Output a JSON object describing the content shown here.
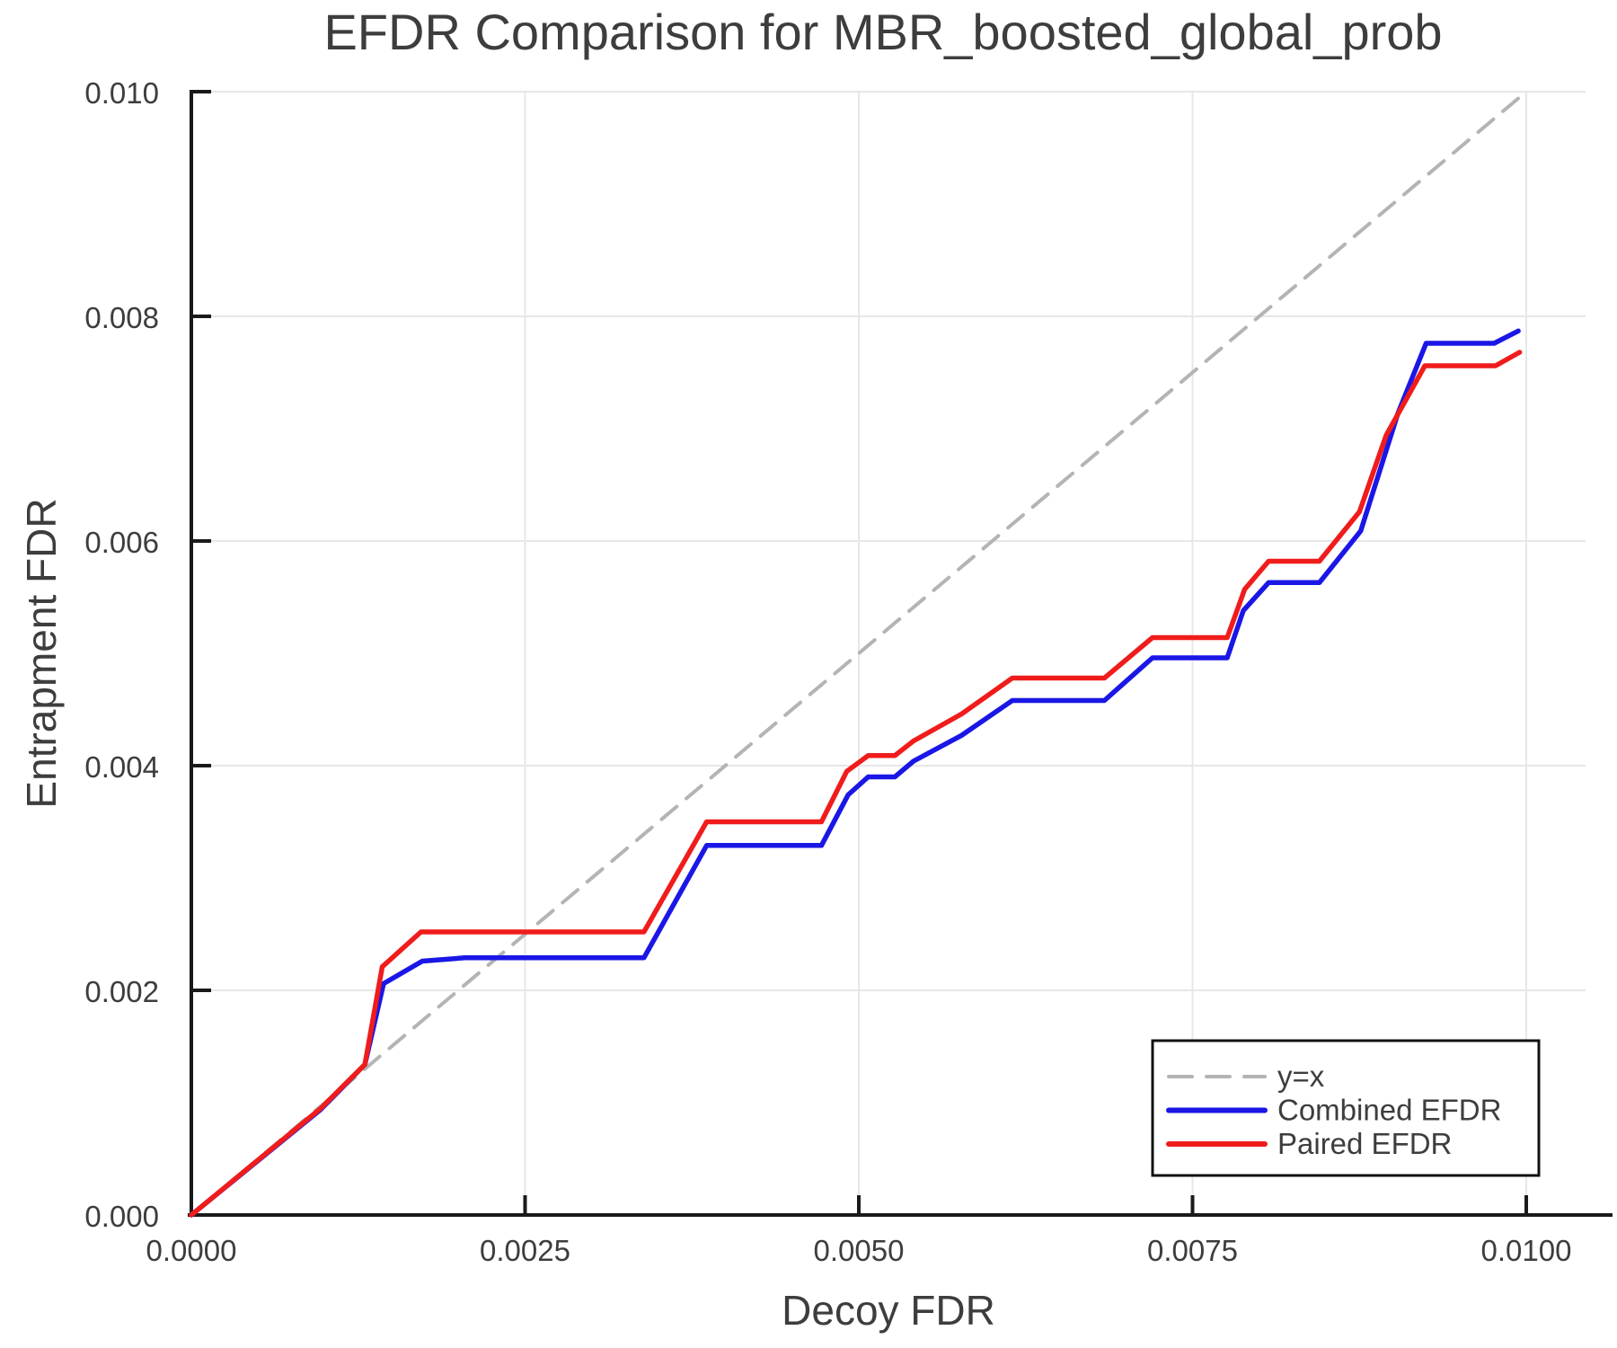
{
  "chart_data": {
    "type": "line",
    "title": "EFDR Comparison for MBR_boosted_global_prob",
    "xlabel": "Decoy FDR",
    "ylabel": "Entrapment FDR",
    "xlim": [
      0.0,
      0.010444
    ],
    "ylim": [
      0.0,
      0.01
    ],
    "grid": true,
    "legend_position": "lower right",
    "x_ticks": [
      {
        "value": 0.0,
        "label": "0.0000"
      },
      {
        "value": 0.0025,
        "label": "0.0025"
      },
      {
        "value": 0.005,
        "label": "0.0050"
      },
      {
        "value": 0.0075,
        "label": "0.0075"
      },
      {
        "value": 0.01,
        "label": "0.0100"
      }
    ],
    "y_ticks": [
      {
        "value": 0.0,
        "label": "0.000"
      },
      {
        "value": 0.002,
        "label": "0.002"
      },
      {
        "value": 0.004,
        "label": "0.004"
      },
      {
        "value": 0.006,
        "label": "0.006"
      },
      {
        "value": 0.008,
        "label": "0.008"
      },
      {
        "value": 0.01,
        "label": "0.010"
      }
    ],
    "series": [
      {
        "name": "y=x",
        "style": "dashed",
        "color": "#b4b4b4",
        "points": [
          [
            0.0,
            0.0
          ],
          [
            0.01,
            0.01
          ]
        ]
      },
      {
        "name": "Combined EFDR",
        "style": "solid",
        "color": "#1a17e6",
        "points": [
          [
            0.0,
            0.0
          ],
          [
            0.00097,
            0.00094
          ],
          [
            0.0013,
            0.00134
          ],
          [
            0.00144,
            0.00206
          ],
          [
            0.00173,
            0.00226
          ],
          [
            0.00205,
            0.00229
          ],
          [
            0.00339,
            0.00229
          ],
          [
            0.00386,
            0.00329
          ],
          [
            0.00472,
            0.00329
          ],
          [
            0.00492,
            0.00374
          ],
          [
            0.00507,
            0.0039
          ],
          [
            0.00527,
            0.0039
          ],
          [
            0.00541,
            0.00404
          ],
          [
            0.00577,
            0.00427
          ],
          [
            0.00615,
            0.00458
          ],
          [
            0.00684,
            0.00458
          ],
          [
            0.0072,
            0.00496
          ],
          [
            0.00776,
            0.00496
          ],
          [
            0.00788,
            0.00538
          ],
          [
            0.00807,
            0.00563
          ],
          [
            0.00845,
            0.00563
          ],
          [
            0.00876,
            0.00609
          ],
          [
            0.00904,
            0.00714
          ],
          [
            0.00925,
            0.00776
          ],
          [
            0.00976,
            0.00776
          ],
          [
            0.00994,
            0.00787
          ]
        ]
      },
      {
        "name": "Paired EFDR",
        "style": "solid",
        "color": "#f01c1c",
        "points": [
          [
            0.0,
            0.0
          ],
          [
            0.00097,
            0.00095
          ],
          [
            0.0013,
            0.00134
          ],
          [
            0.00143,
            0.00221
          ],
          [
            0.00172,
            0.00252
          ],
          [
            0.00339,
            0.00252
          ],
          [
            0.00386,
            0.0035
          ],
          [
            0.00472,
            0.0035
          ],
          [
            0.00491,
            0.00395
          ],
          [
            0.00507,
            0.00409
          ],
          [
            0.00527,
            0.00409
          ],
          [
            0.00541,
            0.00422
          ],
          [
            0.00577,
            0.00446
          ],
          [
            0.00615,
            0.00478
          ],
          [
            0.00684,
            0.00478
          ],
          [
            0.0072,
            0.00514
          ],
          [
            0.00776,
            0.00514
          ],
          [
            0.00789,
            0.00557
          ],
          [
            0.00807,
            0.00582
          ],
          [
            0.00845,
            0.00582
          ],
          [
            0.00875,
            0.00626
          ],
          [
            0.00895,
            0.00694
          ],
          [
            0.00924,
            0.00756
          ],
          [
            0.00977,
            0.00756
          ],
          [
            0.00995,
            0.00768
          ]
        ]
      }
    ]
  },
  "colors": {
    "grid": "#e7e7e7",
    "spine": "#1a1a1a",
    "text": "#3d3d3d",
    "legend_border": "#111111",
    "background": "#ffffff"
  }
}
